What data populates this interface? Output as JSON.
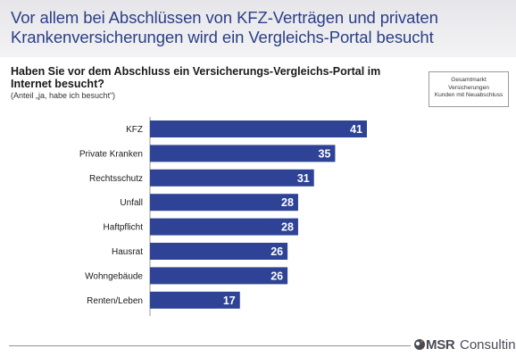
{
  "header": {
    "headline": "Vor allem bei Abschlüssen von KFZ-Verträgen und privaten Krankenversicherungen wird ein Vergleichs-Portal besucht"
  },
  "chart_data": {
    "type": "bar",
    "orientation": "horizontal",
    "title": "Haben Sie vor dem Abschluss ein Versicherungs-Vergleichs-Portal im Internet besucht?",
    "subtitle": "(Anteil „ja, habe ich besucht“)",
    "categories": [
      "KFZ",
      "Private Kranken",
      "Rechtsschutz",
      "Unfall",
      "Haftpflicht",
      "Hausrat",
      "Wohngebäude",
      "Renten/Leben"
    ],
    "values": [
      41,
      35,
      31,
      28,
      28,
      26,
      26,
      17
    ],
    "xlim": [
      0,
      41
    ],
    "grid": false,
    "bar_color": "#2e4396",
    "label_color": "#ffffff"
  },
  "segment_box": {
    "lines": [
      "Gesamtmarkt",
      "Versicherungen",
      "Kunden mit Neuabschluss"
    ]
  },
  "footer": {
    "logo_msr": "MSR",
    "logo_consulting": "Consulting",
    "logo_icon": "msr-logo-icon"
  }
}
